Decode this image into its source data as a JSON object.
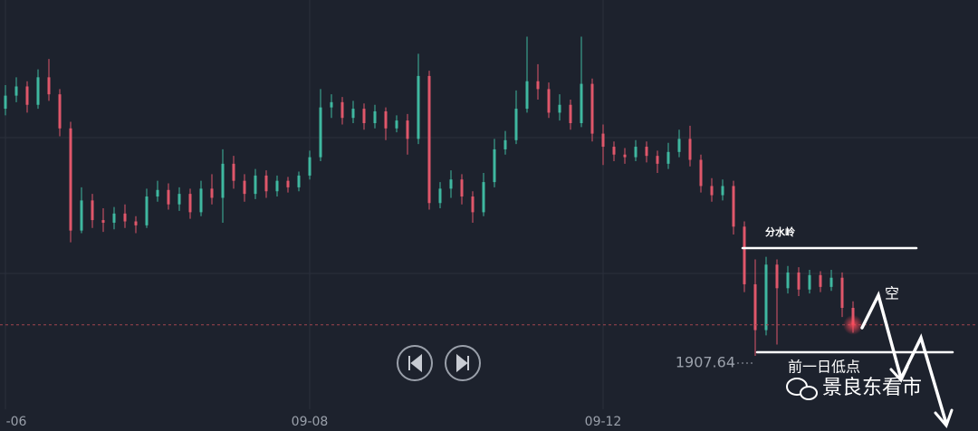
{
  "chart_data": {
    "type": "candlestick",
    "categories": [
      "-06",
      null,
      null,
      null,
      null,
      null,
      null,
      null,
      null,
      null,
      null,
      null,
      null,
      null,
      null,
      null,
      null,
      null,
      null,
      null,
      null,
      null,
      null,
      null,
      null,
      null,
      null,
      null,
      "09-08",
      null,
      null,
      null,
      null,
      null,
      null,
      null,
      null,
      null,
      null,
      null,
      null,
      null,
      null,
      null,
      null,
      null,
      null,
      null,
      null,
      null,
      null,
      null,
      null,
      null,
      null,
      "09-12",
      null,
      null,
      null,
      null,
      null,
      null,
      null,
      null,
      null,
      null,
      null,
      null,
      null,
      null,
      null,
      null,
      null,
      null,
      null,
      null,
      null,
      null,
      null
    ],
    "series": [
      {
        "open": [
          1926.5,
          1927.5,
          1928.2,
          1926.8,
          1928.9,
          1927.6,
          1925.0,
          1917.2,
          1919.5,
          1918.0,
          1917.8,
          1918.5,
          1917.9,
          1917.6,
          1919.8,
          1920.3,
          1919.2,
          1920.0,
          1918.6,
          1920.4,
          1919.7,
          1922.3,
          1921.0,
          1920.0,
          1921.4,
          1920.2,
          1921.0,
          1920.5,
          1921.4,
          1922.8,
          1926.6,
          1927.0,
          1925.8,
          1926.5,
          1925.4,
          1926.3,
          1925.0,
          1925.6,
          1924.2,
          1929.0,
          1919.3,
          1920.4,
          1921.1,
          1919.8,
          1918.6,
          1920.9,
          1923.4,
          1924.1,
          1926.5,
          1928.6,
          1928.0,
          1926.2,
          1926.8,
          1925.4,
          1928.4,
          1924.6,
          1923.6,
          1923.0,
          1922.8,
          1923.6,
          1922.9,
          1922.3,
          1923.2,
          1924.2,
          1922.6,
          1920.6,
          1919.9,
          1920.6,
          1917.5,
          1913.1,
          1909.6,
          1914.6,
          1912.8,
          1914.0,
          1912.7,
          1913.8,
          1912.9,
          1913.6,
          1911.3
        ],
        "high": [
          1928.3,
          1928.9,
          1928.6,
          1929.5,
          1930.3,
          1928.0,
          1925.5,
          1920.5,
          1920.0,
          1918.9,
          1919.0,
          1919.2,
          1918.3,
          1920.4,
          1921.0,
          1920.8,
          1920.5,
          1920.4,
          1921.0,
          1921.5,
          1923.4,
          1922.9,
          1921.5,
          1921.9,
          1921.8,
          1921.4,
          1921.3,
          1921.7,
          1923.3,
          1928.0,
          1927.6,
          1927.4,
          1927.1,
          1926.9,
          1926.8,
          1926.6,
          1926.0,
          1926.1,
          1930.7,
          1929.4,
          1920.9,
          1921.8,
          1921.5,
          1920.2,
          1921.6,
          1924.2,
          1924.8,
          1927.9,
          1932.0,
          1929.9,
          1928.5,
          1927.6,
          1927.2,
          1932.0,
          1928.8,
          1925.3,
          1924.0,
          1923.5,
          1924.1,
          1924.0,
          1923.3,
          1923.9,
          1924.9,
          1925.2,
          1923.0,
          1921.2,
          1921.1,
          1921.0,
          1917.9,
          1915.0,
          1915.2,
          1915.0,
          1914.5,
          1914.4,
          1914.2,
          1914.1,
          1914.2,
          1914.0,
          1911.8
        ],
        "low": [
          1926.0,
          1927.0,
          1926.2,
          1926.5,
          1927.1,
          1924.4,
          1916.3,
          1917.0,
          1917.4,
          1917.1,
          1917.3,
          1917.4,
          1917.0,
          1917.4,
          1919.4,
          1918.8,
          1918.7,
          1918.1,
          1918.3,
          1919.2,
          1917.8,
          1920.4,
          1919.4,
          1919.6,
          1919.7,
          1919.8,
          1920.1,
          1920.2,
          1921.1,
          1922.5,
          1925.8,
          1925.3,
          1925.4,
          1924.9,
          1925.0,
          1924.1,
          1924.7,
          1923.0,
          1923.8,
          1918.8,
          1918.9,
          1919.7,
          1919.2,
          1917.8,
          1918.3,
          1920.5,
          1923.0,
          1923.8,
          1926.2,
          1927.2,
          1925.8,
          1925.6,
          1924.9,
          1925.1,
          1924.0,
          1922.2,
          1922.5,
          1922.3,
          1922.5,
          1922.4,
          1921.6,
          1921.9,
          1922.8,
          1922.1,
          1920.1,
          1919.4,
          1919.5,
          1916.9,
          1912.5,
          1907.64,
          1909.2,
          1908.5,
          1912.4,
          1912.2,
          1912.4,
          1912.5,
          1912.6,
          1910.6,
          1909.4
        ],
        "close": [
          1927.5,
          1928.2,
          1926.8,
          1928.9,
          1927.6,
          1925.0,
          1917.2,
          1919.5,
          1918.0,
          1917.8,
          1918.5,
          1917.9,
          1917.6,
          1919.8,
          1920.3,
          1919.2,
          1920.0,
          1918.6,
          1920.4,
          1919.7,
          1922.3,
          1921.0,
          1920.0,
          1921.4,
          1920.2,
          1921.0,
          1920.5,
          1921.4,
          1922.8,
          1926.6,
          1927.0,
          1925.8,
          1926.5,
          1925.4,
          1926.3,
          1925.0,
          1925.6,
          1924.2,
          1929.0,
          1919.3,
          1920.4,
          1921.1,
          1919.8,
          1918.6,
          1920.9,
          1923.4,
          1924.1,
          1926.5,
          1928.6,
          1928.0,
          1926.2,
          1926.8,
          1925.4,
          1928.4,
          1924.6,
          1923.6,
          1923.0,
          1922.8,
          1923.6,
          1922.9,
          1922.3,
          1923.2,
          1924.2,
          1922.6,
          1920.6,
          1919.9,
          1920.6,
          1917.5,
          1913.1,
          1909.6,
          1914.6,
          1912.8,
          1914.0,
          1912.7,
          1913.8,
          1912.9,
          1913.6,
          1911.3,
          1910.0
        ]
      }
    ],
    "up_color": "#3fb8a0",
    "down_color": "#e0576a",
    "ylim": [
      1901.9,
      1934.8
    ],
    "annotations": [
      "分水岭",
      "空",
      "前一日低点"
    ],
    "watermark": "景良东看市"
  }
}
